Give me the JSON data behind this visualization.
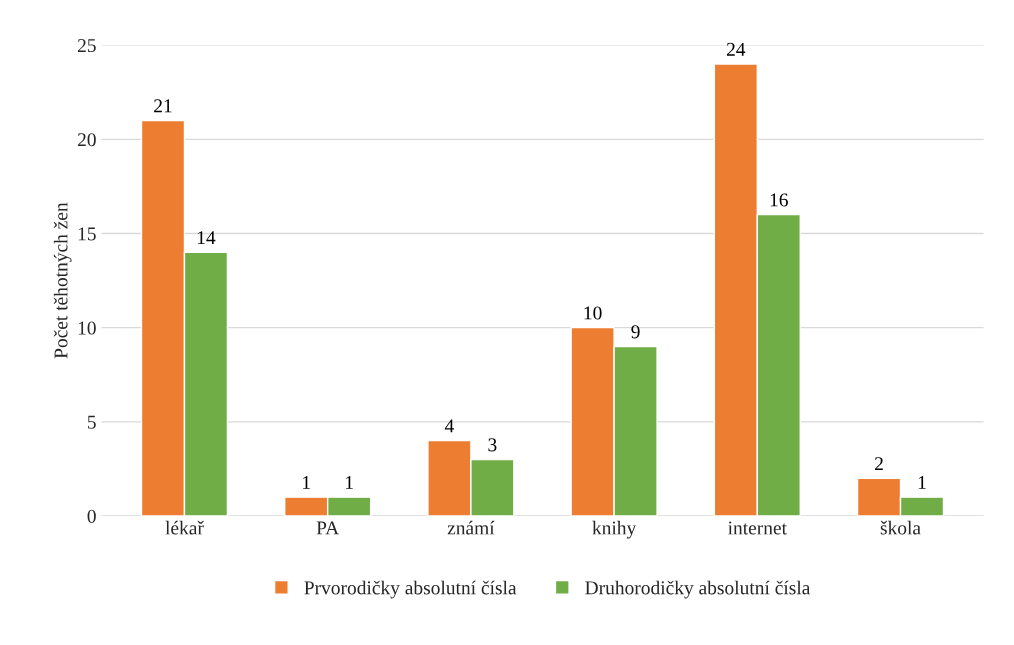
{
  "chart_data": {
    "type": "bar",
    "ylabel": "Počet těhotných žen",
    "categories": [
      "lékař",
      "PA",
      "známí",
      "knihy",
      "internet",
      "škola"
    ],
    "series": [
      {
        "name": "Prvorodičky absolutní čísla",
        "color": "#ed7d31",
        "values": [
          21,
          1,
          4,
          10,
          24,
          2
        ]
      },
      {
        "name": "Druhorodičky absolutní čísla",
        "color": "#70ad47",
        "values": [
          14,
          1,
          3,
          9,
          16,
          1
        ]
      }
    ],
    "ylim": [
      0,
      25
    ],
    "yticks": [
      0,
      5,
      10,
      15,
      20,
      25
    ],
    "grid": "y",
    "legend": "bottom",
    "data_labels": true
  }
}
